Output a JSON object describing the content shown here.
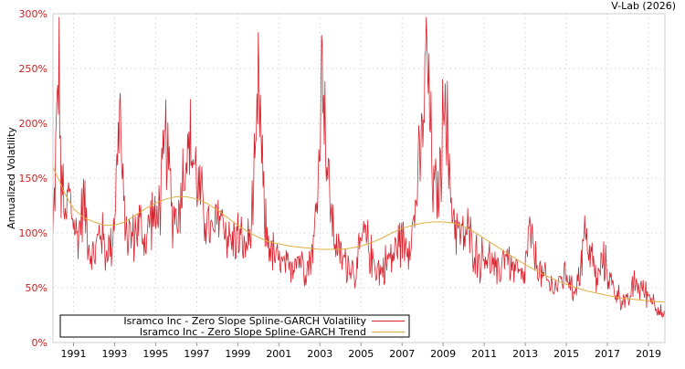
{
  "chart_data": {
    "type": "line",
    "title": "",
    "credit": "V-Lab (2026)",
    "xlabel": "",
    "ylabel": "Annualized Volatility",
    "xlim": [
      1990.0,
      2019.8
    ],
    "ylim": [
      0,
      300
    ],
    "x_tick_labels": [
      "1991",
      "1993",
      "1995",
      "1997",
      "1999",
      "2001",
      "2003",
      "2005",
      "2007",
      "2009",
      "2011",
      "2013",
      "2015",
      "2017",
      "2019"
    ],
    "y_tick_labels": [
      "0%",
      "50%",
      "100%",
      "150%",
      "200%",
      "250%",
      "300%"
    ],
    "y_ticks": [
      0,
      50,
      100,
      150,
      200,
      250,
      300
    ],
    "grid": true,
    "legend": "bottom-left",
    "colors": {
      "volatility": "#d9232e",
      "trend": "#e0b040",
      "tick_text": "#cc2222"
    },
    "series": [
      {
        "name": "Isramco Inc - Zero Slope Spline-GARCH Volatility",
        "color": "#d9232e",
        "x": [
          1990.0,
          1990.15,
          1990.3,
          1990.4,
          1990.5,
          1990.6,
          1990.75,
          1991.0,
          1991.2,
          1991.5,
          1991.8,
          1992.0,
          1992.3,
          1992.6,
          1992.9,
          1993.1,
          1993.25,
          1993.4,
          1993.6,
          1993.9,
          1994.2,
          1994.5,
          1994.8,
          1995.0,
          1995.3,
          1995.5,
          1995.8,
          1996.1,
          1996.4,
          1996.7,
          1997.0,
          1997.2,
          1997.5,
          1997.8,
          1998.1,
          1998.4,
          1998.7,
          1999.0,
          1999.3,
          1999.6,
          1999.9,
          2000.0,
          2000.1,
          2000.3,
          2000.6,
          2000.9,
          2001.2,
          2001.5,
          2001.8,
          2002.1,
          2002.4,
          2002.7,
          2002.9,
          2003.05,
          2003.15,
          2003.3,
          2003.6,
          2003.9,
          2004.2,
          2004.5,
          2004.8,
          2005.1,
          2005.4,
          2005.7,
          2006.0,
          2006.3,
          2006.6,
          2006.9,
          2007.2,
          2007.5,
          2007.8,
          2008.0,
          2008.2,
          2008.3,
          2008.5,
          2008.7,
          2008.9,
          2009.1,
          2009.3,
          2009.6,
          2009.9,
          2010.2,
          2010.5,
          2010.8,
          2011.1,
          2011.4,
          2011.7,
          2012.0,
          2012.3,
          2012.6,
          2012.9,
          2013.2,
          2013.5,
          2013.8,
          2014.1,
          2014.4,
          2014.7,
          2015.0,
          2015.3,
          2015.6,
          2015.9,
          2016.2,
          2016.5,
          2016.8,
          2017.1,
          2017.4,
          2017.7,
          2018.0,
          2018.3,
          2018.6,
          2018.9,
          2019.2,
          2019.5,
          2019.8
        ],
        "values": [
          90,
          180,
          270,
          120,
          150,
          100,
          140,
          110,
          95,
          130,
          85,
          75,
          105,
          80,
          95,
          150,
          225,
          130,
          100,
          95,
          110,
          90,
          120,
          105,
          140,
          190,
          120,
          115,
          165,
          180,
          150,
          130,
          110,
          95,
          120,
          105,
          90,
          100,
          85,
          95,
          170,
          230,
          200,
          110,
          85,
          75,
          70,
          65,
          80,
          75,
          70,
          90,
          140,
          230,
          275,
          170,
          110,
          80,
          75,
          70,
          65,
          100,
          85,
          70,
          65,
          75,
          80,
          95,
          90,
          100,
          150,
          190,
          280,
          220,
          150,
          130,
          160,
          250,
          140,
          110,
          95,
          100,
          85,
          75,
          80,
          70,
          60,
          85,
          70,
          65,
          55,
          100,
          75,
          60,
          55,
          50,
          55,
          65,
          45,
          60,
          100,
          80,
          55,
          75,
          60,
          45,
          40,
          35,
          55,
          50,
          45,
          40,
          30,
          22
        ],
        "noise": 0.22
      },
      {
        "name": "Isramco Inc - Zero Slope Spline-GARCH Trend",
        "color": "#e0b040",
        "x": [
          1990.0,
          1990.3,
          1990.6,
          1991.0,
          1991.5,
          1992.0,
          1992.5,
          1993.0,
          1993.5,
          1994.0,
          1994.5,
          1995.0,
          1995.5,
          1996.0,
          1996.5,
          1997.0,
          1997.5,
          1998.0,
          1998.5,
          1999.0,
          1999.5,
          2000.0,
          2000.5,
          2001.0,
          2001.5,
          2002.0,
          2002.5,
          2003.0,
          2003.5,
          2004.0,
          2004.5,
          2005.0,
          2005.5,
          2006.0,
          2006.5,
          2007.0,
          2007.5,
          2008.0,
          2008.5,
          2009.0,
          2009.5,
          2010.0,
          2010.5,
          2011.0,
          2011.5,
          2012.0,
          2012.5,
          2013.0,
          2013.5,
          2014.0,
          2014.5,
          2015.0,
          2015.5,
          2016.0,
          2016.5,
          2017.0,
          2017.5,
          2018.0,
          2018.5,
          2019.0,
          2019.5,
          2019.8
        ],
        "values": [
          160,
          148,
          135,
          122,
          114,
          110,
          107,
          107,
          110,
          116,
          122,
          127,
          131,
          133,
          133,
          131,
          127,
          121,
          114,
          107,
          101,
          96,
          92,
          90,
          88,
          87,
          86,
          85,
          85,
          85,
          86,
          88,
          91,
          95,
          100,
          104,
          107,
          109,
          110,
          110,
          109,
          106,
          101,
          95,
          89,
          83,
          77,
          71,
          66,
          61,
          57,
          53,
          50,
          47,
          45,
          43,
          41,
          40,
          39,
          38,
          37,
          37
        ]
      }
    ]
  }
}
